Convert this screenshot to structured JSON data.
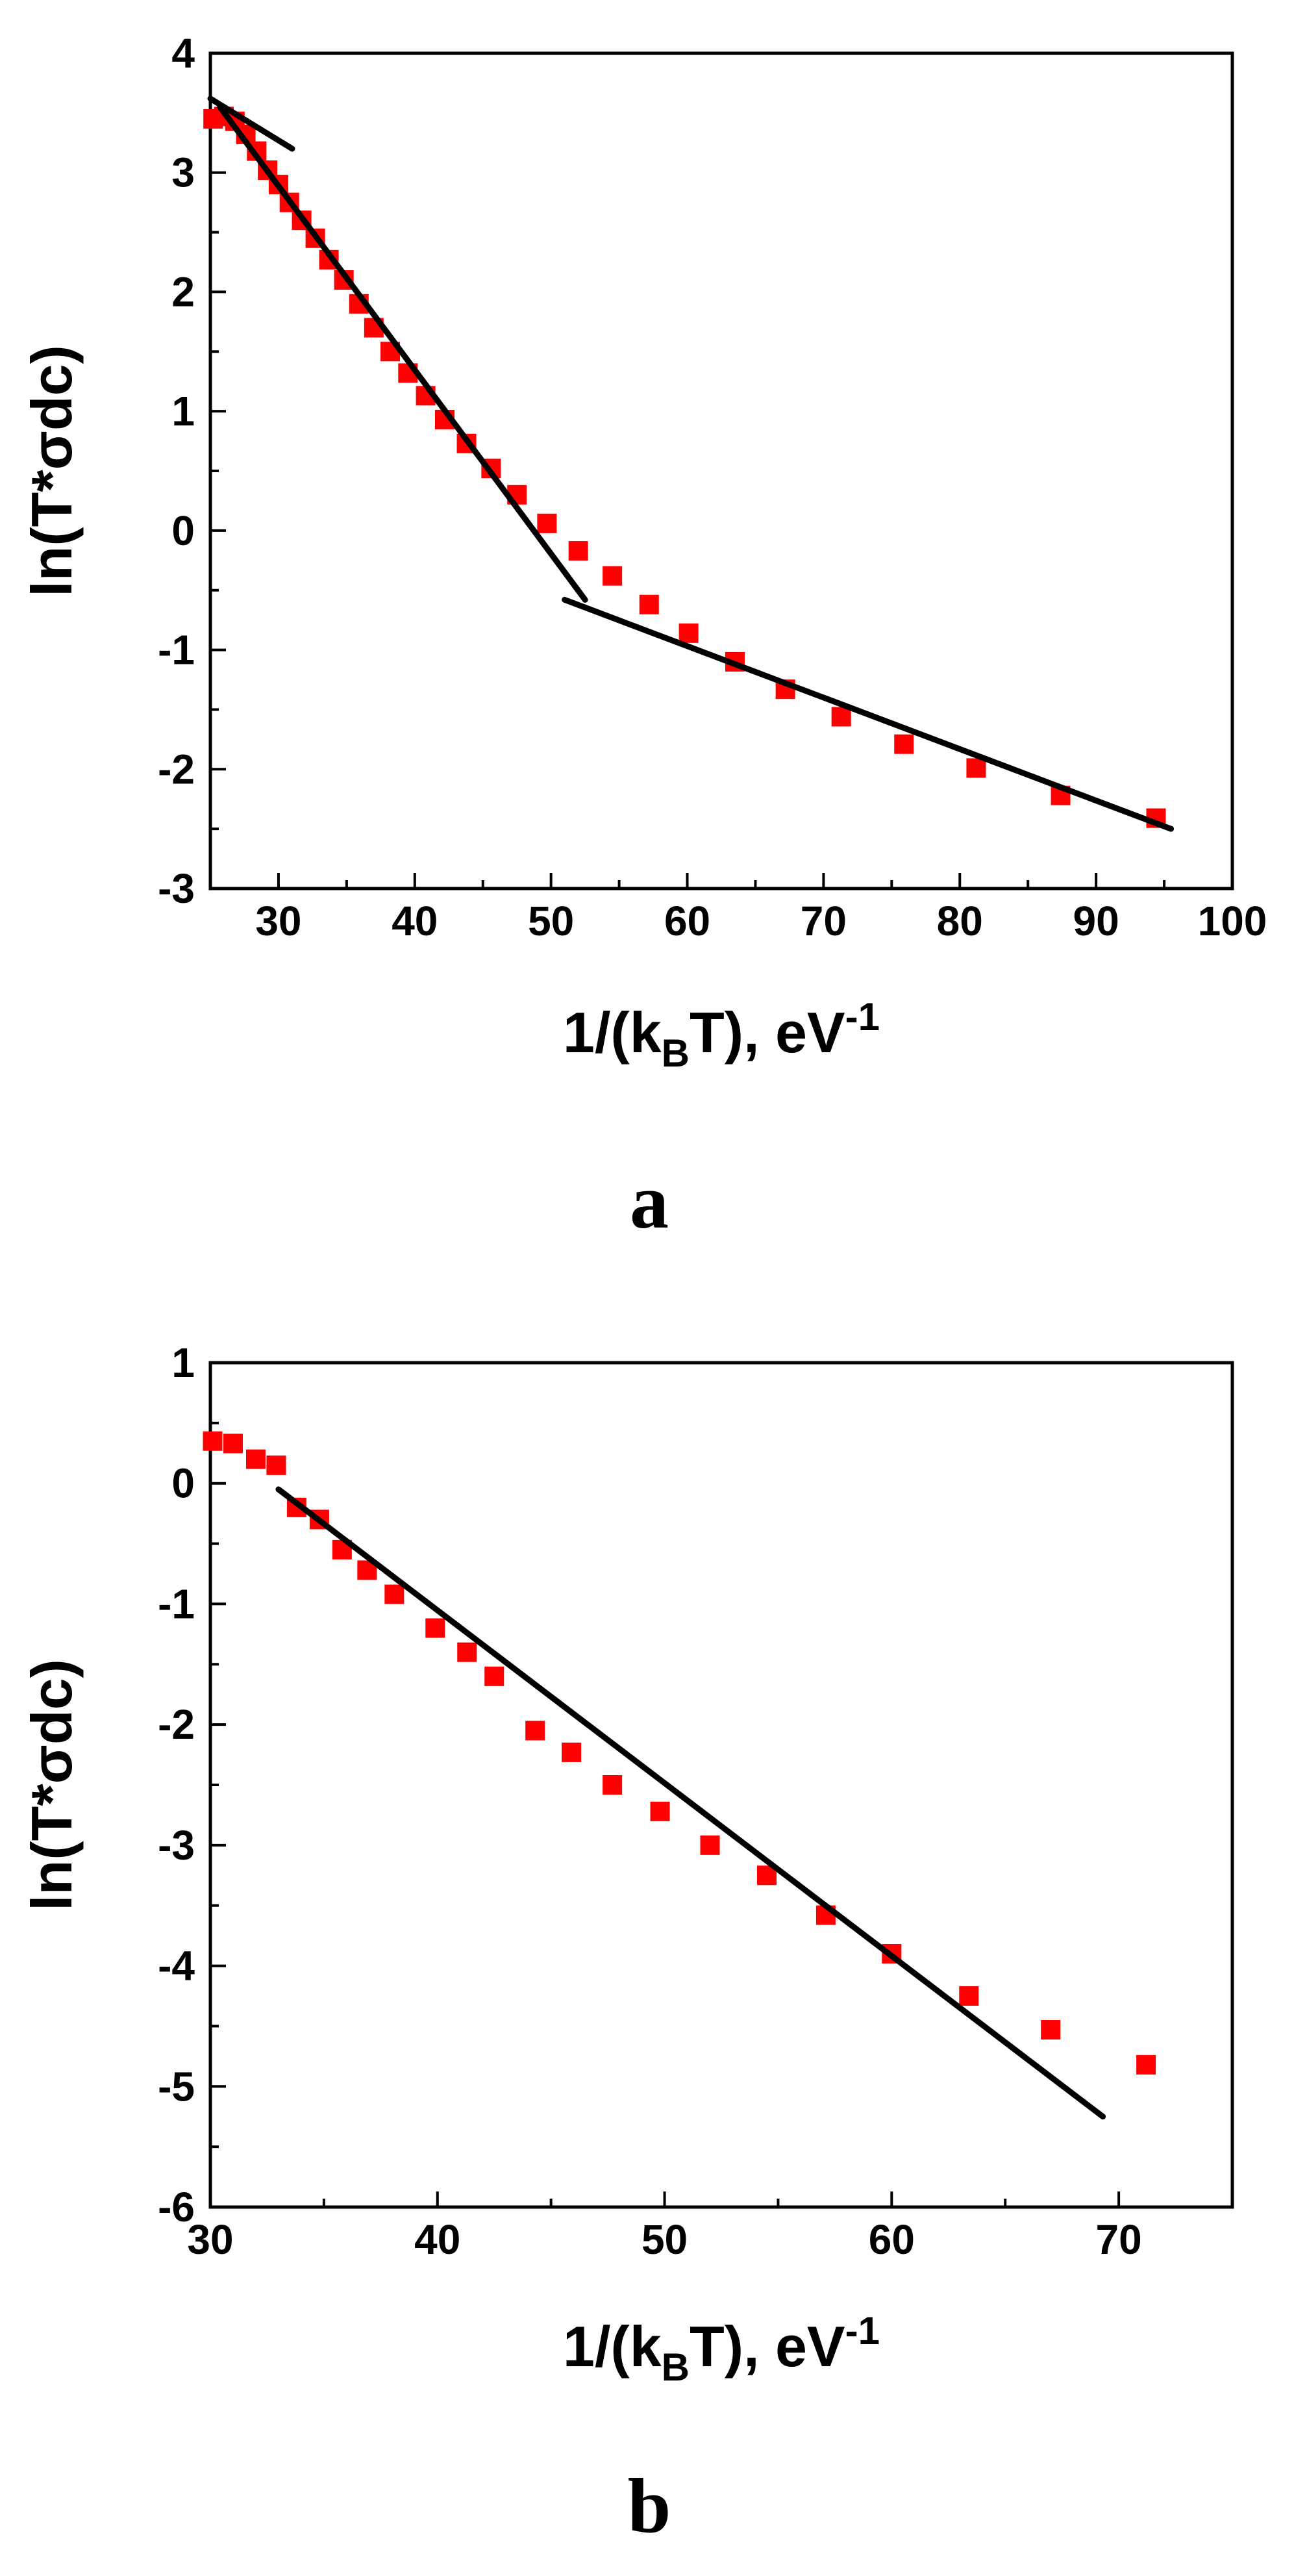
{
  "chart_data": [
    {
      "type": "scatter",
      "panel_label": "a",
      "xlabel": {
        "prefix": "1/(k",
        "sub": "B",
        "mid": "T), eV",
        "sup": "-1"
      },
      "ylabel": "ln(T*σdc)",
      "xlim": [
        25,
        100
      ],
      "ylim": [
        -3,
        4
      ],
      "xticks": [
        30,
        40,
        50,
        60,
        70,
        80,
        90,
        100
      ],
      "xtick_labels": [
        "30",
        "40",
        "50",
        "60",
        "70",
        "80",
        "90",
        "100"
      ],
      "yticks": [
        -3,
        -2,
        -1,
        0,
        1,
        2,
        3,
        4
      ],
      "ytick_labels": [
        "-3",
        "-2",
        "-1",
        "0",
        "1",
        "2",
        "3",
        "4"
      ],
      "series": [
        {
          "marker": "square",
          "color": "#ff0000",
          "x": [
            25.2,
            26.0,
            26.8,
            27.6,
            28.4,
            29.2,
            30.0,
            30.8,
            31.7,
            32.7,
            33.7,
            34.8,
            35.9,
            37.0,
            38.2,
            39.5,
            40.8,
            42.2,
            43.8,
            45.6,
            47.5,
            49.7,
            52.0,
            54.5,
            57.2,
            60.1,
            63.5,
            67.2,
            71.3,
            75.9,
            81.2,
            87.4,
            94.4
          ],
          "y": [
            3.45,
            3.47,
            3.43,
            3.32,
            3.18,
            3.02,
            2.9,
            2.75,
            2.6,
            2.45,
            2.27,
            2.1,
            1.9,
            1.7,
            1.5,
            1.32,
            1.13,
            0.93,
            0.73,
            0.52,
            0.3,
            0.06,
            -0.17,
            -0.38,
            -0.62,
            -0.86,
            -1.1,
            -1.33,
            -1.56,
            -1.79,
            -1.99,
            -2.22,
            -2.41
          ]
        }
      ],
      "fit_lines": [
        {
          "color": "#000000",
          "x": [
            25.0,
            31.0
          ],
          "y": [
            3.62,
            3.2
          ]
        },
        {
          "color": "#000000",
          "x": [
            25.7,
            52.5
          ],
          "y": [
            3.55,
            -0.58
          ]
        },
        {
          "color": "#000000",
          "x": [
            51.0,
            95.5
          ],
          "y": [
            -0.58,
            -2.5
          ]
        }
      ]
    },
    {
      "type": "scatter",
      "panel_label": "b",
      "xlabel": {
        "prefix": "1/(k",
        "sub": "B",
        "mid": "T), eV",
        "sup": "-1"
      },
      "ylabel": "ln(T*σdc)",
      "xlim": [
        30,
        75
      ],
      "ylim": [
        -6,
        1
      ],
      "xticks": [
        30,
        40,
        50,
        60,
        70
      ],
      "xtick_labels": [
        "30",
        "40",
        "50",
        "60",
        "70"
      ],
      "yticks": [
        -6,
        -5,
        -4,
        -3,
        -2,
        -1,
        0,
        1
      ],
      "ytick_labels": [
        "-6",
        "-5",
        "-4",
        "-3",
        "-2",
        "-1",
        "0",
        "1"
      ],
      "series": [
        {
          "marker": "square",
          "color": "#ff0000",
          "x": [
            30.1,
            31.0,
            32.0,
            32.9,
            33.8,
            34.8,
            35.8,
            36.9,
            38.1,
            39.9,
            41.3,
            42.5,
            44.3,
            45.9,
            47.7,
            49.8,
            52.0,
            54.5,
            57.1,
            60.0,
            63.4,
            67.0,
            71.2
          ],
          "y": [
            0.35,
            0.33,
            0.2,
            0.15,
            -0.2,
            -0.3,
            -0.55,
            -0.72,
            -0.92,
            -1.2,
            -1.4,
            -1.6,
            -2.05,
            -2.23,
            -2.5,
            -2.72,
            -3.0,
            -3.25,
            -3.58,
            -3.9,
            -4.25,
            -4.53,
            -4.82
          ]
        }
      ],
      "fit_lines": [
        {
          "color": "#000000",
          "x": [
            33.0,
            69.3
          ],
          "y": [
            -0.05,
            -5.25
          ]
        }
      ]
    }
  ]
}
